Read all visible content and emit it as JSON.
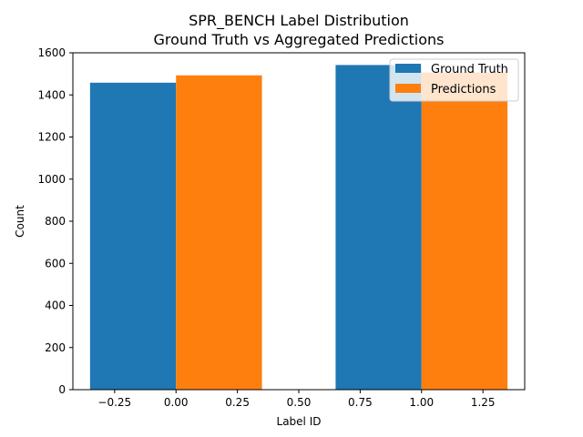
{
  "chart_data": {
    "type": "bar",
    "title": "SPR_BENCH Label Distribution",
    "subtitle": "Ground Truth vs Aggregated Predictions",
    "xlabel": "Label ID",
    "ylabel": "Count",
    "xlim": [
      -0.42,
      1.42
    ],
    "ylim": [
      0,
      1600
    ],
    "grid": false,
    "legend_position": "top-right",
    "x_ticks": [
      {
        "value": -0.25,
        "label": "−0.25"
      },
      {
        "value": 0.0,
        "label": "0.00"
      },
      {
        "value": 0.25,
        "label": "0.25"
      },
      {
        "value": 0.5,
        "label": "0.50"
      },
      {
        "value": 0.75,
        "label": "0.75"
      },
      {
        "value": 1.0,
        "label": "1.00"
      },
      {
        "value": 1.25,
        "label": "1.25"
      }
    ],
    "y_ticks": [
      {
        "value": 0,
        "label": "0"
      },
      {
        "value": 200,
        "label": "200"
      },
      {
        "value": 400,
        "label": "400"
      },
      {
        "value": 600,
        "label": "600"
      },
      {
        "value": 800,
        "label": "800"
      },
      {
        "value": 1000,
        "label": "1000"
      },
      {
        "value": 1200,
        "label": "1200"
      },
      {
        "value": 1400,
        "label": "1400"
      },
      {
        "value": 1600,
        "label": "1600"
      }
    ],
    "categories": [
      0,
      1
    ],
    "bar_width": 0.35,
    "series": [
      {
        "name": "Ground Truth",
        "color": "#1f77b4",
        "offset": -0.175,
        "values": [
          1458,
          1542
        ]
      },
      {
        "name": "Predictions",
        "color": "#ff7f0e",
        "offset": 0.175,
        "values": [
          1493,
          1507
        ]
      }
    ]
  }
}
